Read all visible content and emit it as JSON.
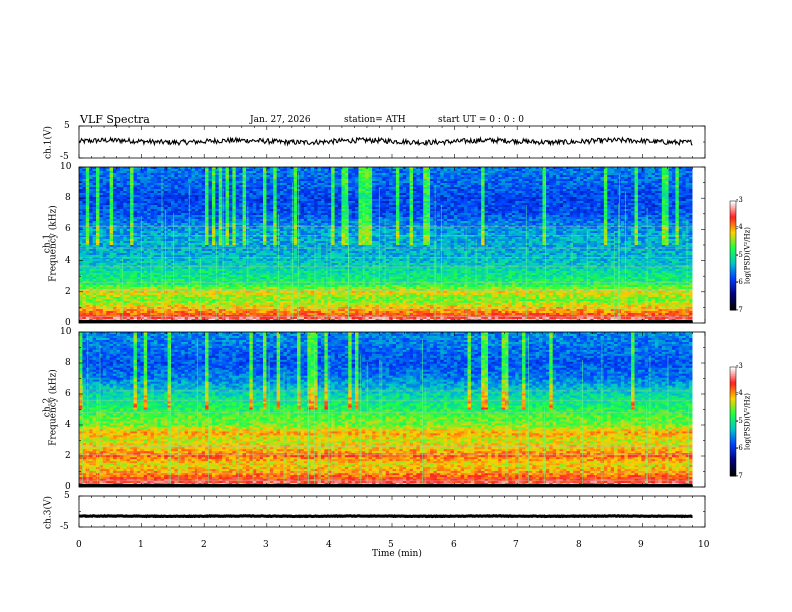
{
  "header": {
    "title": "VLF Spectra",
    "date": "Jan. 27, 2026",
    "station": "station= ATH",
    "start": "start UT = 0 : 0 : 0"
  },
  "colorbar": {
    "label": "log(PSD)(V²/Hz)",
    "ticks": [
      "-3",
      "-4",
      "-5",
      "-6",
      "-7"
    ],
    "colors": [
      "#ffffff",
      "#ff2020",
      "#ffd000",
      "#20ff40",
      "#00c8c8",
      "#0040ff",
      "#000080",
      "#000000"
    ]
  },
  "chart_data": [
    {
      "type": "line",
      "name": "ch1-waveform",
      "ylabel": "ch.1(V)",
      "ylim": [
        -5,
        5
      ],
      "ytick_labels": [
        "5",
        "-5"
      ],
      "x_range_min": [
        0,
        9.8
      ],
      "baseline_v": 0.2,
      "noise_amplitude_v": 0.8
    },
    {
      "type": "heatmap",
      "name": "ch1-spectrogram",
      "ylabel": "ch.1\nFrequency (kHz)",
      "ylabel_line1": "ch.1",
      "ylabel_line2": "Frequency (kHz)",
      "ylim": [
        0,
        10
      ],
      "ytick_labels": [
        "10",
        "8",
        "6",
        "4",
        "2",
        "0"
      ],
      "x_range_min": [
        0,
        9.8
      ],
      "level_profile": [
        [
          0,
          0.95
        ],
        [
          0.3,
          0.9
        ],
        [
          0.6,
          0.8
        ],
        [
          1.0,
          0.72
        ],
        [
          1.5,
          0.62
        ],
        [
          2.0,
          0.7
        ],
        [
          2.5,
          0.55
        ],
        [
          3.0,
          0.5
        ],
        [
          3.5,
          0.47
        ],
        [
          4.0,
          0.42
        ],
        [
          5.0,
          0.4
        ],
        [
          6.0,
          0.38
        ],
        [
          7.0,
          0.3
        ],
        [
          8.0,
          0.28
        ],
        [
          9.0,
          0.32
        ],
        [
          10.0,
          0.34
        ]
      ]
    },
    {
      "type": "heatmap",
      "name": "ch2-spectrogram",
      "ylabel": "ch.2\nFrequency (kHz)",
      "ylabel_line1": "ch.2",
      "ylabel_line2": "Frequency (kHz)",
      "ylim": [
        0,
        10
      ],
      "ytick_labels": [
        "10",
        "8",
        "6",
        "4",
        "2",
        "0"
      ],
      "x_range_min": [
        0,
        9.8
      ],
      "level_profile": [
        [
          0,
          0.95
        ],
        [
          0.3,
          0.88
        ],
        [
          1.0,
          0.75
        ],
        [
          1.5,
          0.7
        ],
        [
          2.0,
          0.8
        ],
        [
          2.5,
          0.72
        ],
        [
          3.0,
          0.68
        ],
        [
          3.5,
          0.75
        ],
        [
          4.0,
          0.62
        ],
        [
          4.5,
          0.6
        ],
        [
          5.0,
          0.55
        ],
        [
          6.0,
          0.46
        ],
        [
          7.0,
          0.35
        ],
        [
          8.0,
          0.3
        ],
        [
          9.0,
          0.34
        ],
        [
          10.0,
          0.36
        ]
      ]
    },
    {
      "type": "line",
      "name": "ch3-waveform",
      "ylabel": "ch.3(V)",
      "ylim": [
        -5,
        5
      ],
      "ytick_labels": [
        "5",
        "-5"
      ],
      "x_range_min": [
        0,
        9.8
      ],
      "baseline_v": -1.5,
      "noise_amplitude_v": 0.1
    }
  ],
  "x_axis": {
    "label": "Time (min)",
    "range": [
      0,
      10
    ],
    "tick_labels": [
      "0",
      "1",
      "2",
      "3",
      "4",
      "5",
      "6",
      "7",
      "8",
      "9",
      "10"
    ]
  }
}
